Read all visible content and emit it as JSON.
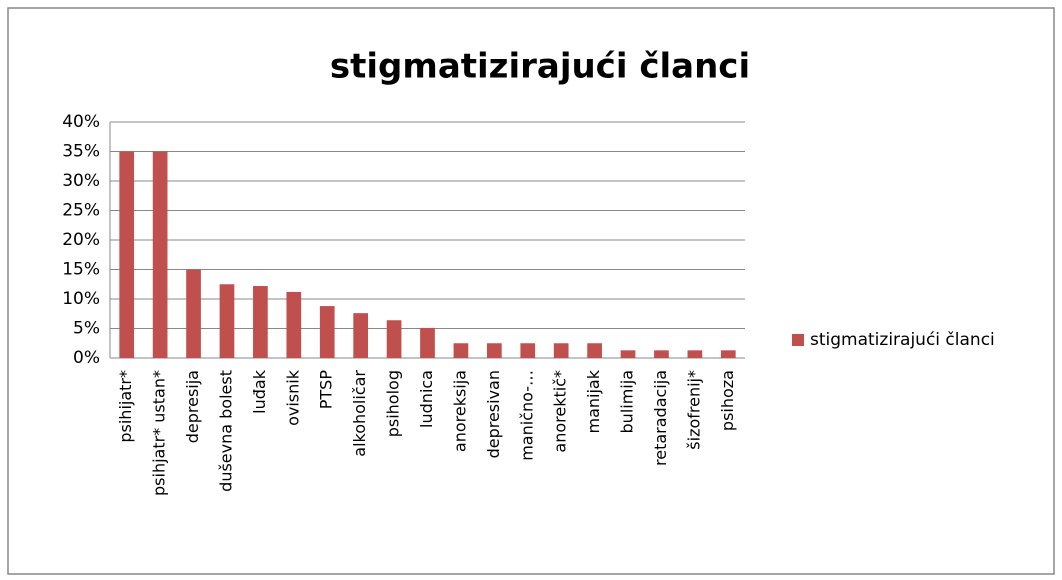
{
  "chart_data": {
    "type": "bar",
    "title": "stigmatizirajući članci",
    "categories": [
      "psihijatr*",
      "psihjatr* ustan*",
      "depresija",
      "duševna bolest",
      "luđak",
      "ovisnik",
      "PTSP",
      "alkoholičar",
      "psiholog",
      "ludnica",
      "anoreksija",
      "depresivan",
      "manično-…",
      "anorektič*",
      "manijak",
      "bulimija",
      "retaradacija",
      "šizofrenij*",
      "psihoza"
    ],
    "series": [
      {
        "name": "stigmatizirajući članci",
        "color": "#c0504d",
        "values": [
          35,
          35,
          15,
          12.5,
          12.2,
          11.2,
          8.8,
          7.6,
          6.4,
          5.1,
          2.5,
          2.5,
          2.5,
          2.5,
          2.5,
          1.3,
          1.3,
          1.3,
          1.3
        ]
      }
    ],
    "ylim": [
      0,
      40
    ],
    "yticks": [
      {
        "value": 0,
        "label": "0%"
      },
      {
        "value": 5,
        "label": "5%"
      },
      {
        "value": 10,
        "label": "10%"
      },
      {
        "value": 15,
        "label": "15%"
      },
      {
        "value": 20,
        "label": "20%"
      },
      {
        "value": 25,
        "label": "25%"
      },
      {
        "value": 30,
        "label": "30%"
      },
      {
        "value": 35,
        "label": "35%"
      },
      {
        "value": 40,
        "label": "40%"
      }
    ],
    "grid": true,
    "legend": "right"
  }
}
